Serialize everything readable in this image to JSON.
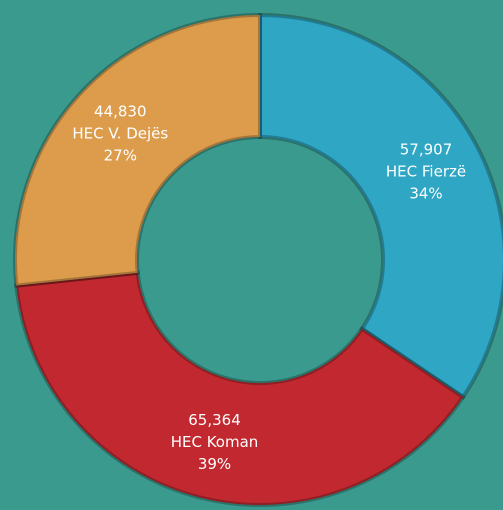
{
  "chart_data": {
    "type": "donut",
    "categories": [
      "HEC Fierzë",
      "HEC Koman",
      "HEC V. Dejës"
    ],
    "values": [
      57907,
      65364,
      44830
    ],
    "value_labels": [
      "57,907",
      "65,364",
      "44,830"
    ],
    "percents": [
      34,
      39,
      27
    ],
    "percent_labels": [
      "34%",
      "39%",
      "27%"
    ],
    "colors": [
      "#2ea6c4",
      "#c1282f",
      "#dc9c4c"
    ]
  }
}
